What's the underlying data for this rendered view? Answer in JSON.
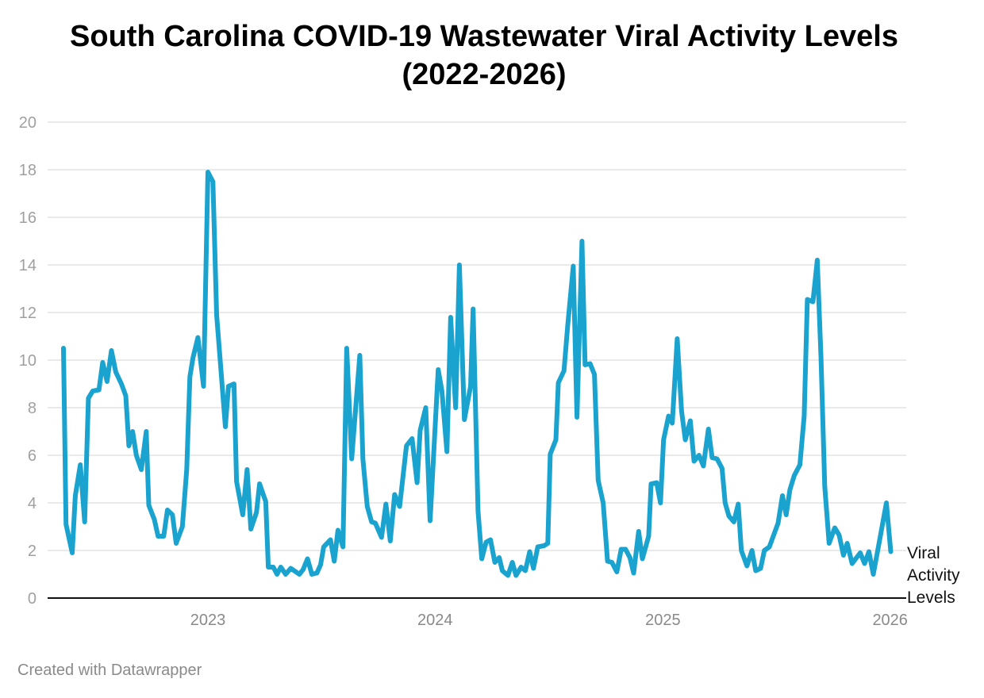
{
  "chart_data": {
    "type": "line",
    "title": "South Carolina COVID-19  Wastewater Viral Activity Levels",
    "subtitle": "(2022-2026)",
    "xlabel": "",
    "ylabel": "",
    "ylim": [
      0,
      20
    ],
    "y_ticks": [
      "0",
      "2",
      "4",
      "6",
      "8",
      "10",
      "12",
      "14",
      "16",
      "18",
      "20"
    ],
    "x_ticks": [
      {
        "date": "2023-01-01",
        "label": "2023"
      },
      {
        "date": "2024-01-01",
        "label": "2024"
      },
      {
        "date": "2025-01-01",
        "label": "2025"
      },
      {
        "date": "2026-01-01",
        "label": "2026"
      }
    ],
    "grid": true,
    "legend": "none",
    "series": [
      {
        "name": "Viral Activity Levels",
        "color": "#1aa3cf",
        "points": [
          [
            "2022-05-14",
            10.5
          ],
          [
            "2022-05-18",
            3.1
          ],
          [
            "2022-05-28",
            1.9
          ],
          [
            "2022-06-02",
            4.3
          ],
          [
            "2022-06-10",
            5.6
          ],
          [
            "2022-06-17",
            3.2
          ],
          [
            "2022-06-23",
            8.4
          ],
          [
            "2022-06-30",
            8.7
          ],
          [
            "2022-07-10",
            8.75
          ],
          [
            "2022-07-16",
            9.9
          ],
          [
            "2022-07-23",
            9.1
          ],
          [
            "2022-07-30",
            10.4
          ],
          [
            "2022-08-06",
            9.5
          ],
          [
            "2022-08-15",
            9.0
          ],
          [
            "2022-08-22",
            8.5
          ],
          [
            "2022-08-27",
            6.4
          ],
          [
            "2022-09-02",
            7.0
          ],
          [
            "2022-09-08",
            6.0
          ],
          [
            "2022-09-16",
            5.4
          ],
          [
            "2022-09-24",
            7.0
          ],
          [
            "2022-09-28",
            3.9
          ],
          [
            "2022-10-07",
            3.3
          ],
          [
            "2022-10-13",
            2.6
          ],
          [
            "2022-10-22",
            2.6
          ],
          [
            "2022-10-28",
            3.7
          ],
          [
            "2022-11-05",
            3.5
          ],
          [
            "2022-11-11",
            2.3
          ],
          [
            "2022-11-21",
            3.0
          ],
          [
            "2022-11-28",
            5.4
          ],
          [
            "2022-12-03",
            9.3
          ],
          [
            "2022-12-08",
            10.1
          ],
          [
            "2022-12-16",
            10.95
          ],
          [
            "2022-12-25",
            8.9
          ],
          [
            "2023-01-01",
            17.9
          ],
          [
            "2023-01-09",
            17.5
          ],
          [
            "2023-01-15",
            11.9
          ],
          [
            "2023-01-29",
            7.2
          ],
          [
            "2023-02-03",
            8.9
          ],
          [
            "2023-02-12",
            9.0
          ],
          [
            "2023-02-16",
            4.9
          ],
          [
            "2023-02-26",
            3.5
          ],
          [
            "2023-03-05",
            5.4
          ],
          [
            "2023-03-11",
            2.9
          ],
          [
            "2023-03-20",
            3.6
          ],
          [
            "2023-03-25",
            4.8
          ],
          [
            "2023-04-04",
            4.05
          ],
          [
            "2023-04-08",
            1.3
          ],
          [
            "2023-04-16",
            1.3
          ],
          [
            "2023-04-22",
            1.0
          ],
          [
            "2023-04-28",
            1.3
          ],
          [
            "2023-05-06",
            1.0
          ],
          [
            "2023-05-14",
            1.25
          ],
          [
            "2023-05-28",
            1.0
          ],
          [
            "2023-06-03",
            1.2
          ],
          [
            "2023-06-10",
            1.65
          ],
          [
            "2023-06-17",
            1.0
          ],
          [
            "2023-06-25",
            1.05
          ],
          [
            "2023-07-01",
            1.4
          ],
          [
            "2023-07-06",
            2.15
          ],
          [
            "2023-07-17",
            2.45
          ],
          [
            "2023-07-23",
            1.55
          ],
          [
            "2023-07-29",
            2.85
          ],
          [
            "2023-08-06",
            2.15
          ],
          [
            "2023-08-12",
            10.5
          ],
          [
            "2023-08-20",
            5.85
          ],
          [
            "2023-09-02",
            10.2
          ],
          [
            "2023-09-07",
            5.85
          ],
          [
            "2023-09-14",
            3.85
          ],
          [
            "2023-09-21",
            3.2
          ],
          [
            "2023-09-27",
            3.15
          ],
          [
            "2023-10-07",
            2.55
          ],
          [
            "2023-10-14",
            3.95
          ],
          [
            "2023-10-21",
            2.4
          ],
          [
            "2023-10-28",
            4.35
          ],
          [
            "2023-11-05",
            3.85
          ],
          [
            "2023-11-16",
            6.4
          ],
          [
            "2023-11-25",
            6.7
          ],
          [
            "2023-12-03",
            4.85
          ],
          [
            "2023-12-08",
            7.05
          ],
          [
            "2023-12-17",
            8.0
          ],
          [
            "2023-12-24",
            3.25
          ],
          [
            "2024-01-06",
            9.6
          ],
          [
            "2024-01-12",
            8.7
          ],
          [
            "2024-01-20",
            6.15
          ],
          [
            "2024-01-26",
            11.8
          ],
          [
            "2024-02-03",
            8.0
          ],
          [
            "2024-02-09",
            14.0
          ],
          [
            "2024-02-17",
            7.5
          ],
          [
            "2024-02-27",
            8.9
          ],
          [
            "2024-03-02",
            12.15
          ],
          [
            "2024-03-10",
            3.65
          ],
          [
            "2024-03-16",
            1.65
          ],
          [
            "2024-03-23",
            2.35
          ],
          [
            "2024-03-30",
            2.45
          ],
          [
            "2024-04-06",
            1.5
          ],
          [
            "2024-04-13",
            1.7
          ],
          [
            "2024-04-18",
            1.15
          ],
          [
            "2024-04-27",
            0.95
          ],
          [
            "2024-05-04",
            1.5
          ],
          [
            "2024-05-10",
            0.95
          ],
          [
            "2024-05-18",
            1.3
          ],
          [
            "2024-05-25",
            1.15
          ],
          [
            "2024-06-01",
            1.95
          ],
          [
            "2024-06-07",
            1.25
          ],
          [
            "2024-06-14",
            2.15
          ],
          [
            "2024-06-24",
            2.2
          ],
          [
            "2024-06-30",
            2.3
          ],
          [
            "2024-07-04",
            6.05
          ],
          [
            "2024-07-13",
            6.65
          ],
          [
            "2024-07-17",
            9.05
          ],
          [
            "2024-07-26",
            9.55
          ],
          [
            "2024-08-01",
            11.45
          ],
          [
            "2024-08-10",
            13.95
          ],
          [
            "2024-08-16",
            7.6
          ],
          [
            "2024-08-24",
            15.0
          ],
          [
            "2024-08-29",
            9.8
          ],
          [
            "2024-09-06",
            9.85
          ],
          [
            "2024-09-13",
            9.4
          ],
          [
            "2024-09-19",
            4.95
          ],
          [
            "2024-09-27",
            4.0
          ],
          [
            "2024-10-04",
            1.55
          ],
          [
            "2024-10-11",
            1.5
          ],
          [
            "2024-10-19",
            1.1
          ],
          [
            "2024-10-26",
            2.05
          ],
          [
            "2024-11-02",
            2.05
          ],
          [
            "2024-11-09",
            1.7
          ],
          [
            "2024-11-15",
            1.05
          ],
          [
            "2024-11-23",
            2.8
          ],
          [
            "2024-11-29",
            1.65
          ],
          [
            "2024-12-09",
            2.6
          ],
          [
            "2024-12-13",
            4.8
          ],
          [
            "2024-12-22",
            4.85
          ],
          [
            "2024-12-28",
            4.0
          ],
          [
            "2025-01-02",
            6.65
          ],
          [
            "2025-01-10",
            7.65
          ],
          [
            "2025-01-16",
            7.35
          ],
          [
            "2025-01-24",
            10.9
          ],
          [
            "2025-01-31",
            7.85
          ],
          [
            "2025-02-06",
            6.65
          ],
          [
            "2025-02-14",
            7.45
          ],
          [
            "2025-02-20",
            5.75
          ],
          [
            "2025-02-28",
            6.0
          ],
          [
            "2025-03-07",
            5.55
          ],
          [
            "2025-03-15",
            7.1
          ],
          [
            "2025-03-21",
            5.9
          ],
          [
            "2025-03-29",
            5.85
          ],
          [
            "2025-04-06",
            5.45
          ],
          [
            "2025-04-11",
            4.0
          ],
          [
            "2025-04-17",
            3.45
          ],
          [
            "2025-04-25",
            3.2
          ],
          [
            "2025-05-02",
            3.95
          ],
          [
            "2025-05-07",
            2.0
          ],
          [
            "2025-05-16",
            1.35
          ],
          [
            "2025-05-24",
            2.0
          ],
          [
            "2025-05-30",
            1.15
          ],
          [
            "2025-06-07",
            1.25
          ],
          [
            "2025-06-13",
            2.0
          ],
          [
            "2025-06-21",
            2.15
          ],
          [
            "2025-06-28",
            2.65
          ],
          [
            "2025-07-05",
            3.15
          ],
          [
            "2025-07-12",
            4.3
          ],
          [
            "2025-07-18",
            3.5
          ],
          [
            "2025-07-24",
            4.55
          ],
          [
            "2025-07-31",
            5.15
          ],
          [
            "2025-08-09",
            5.6
          ],
          [
            "2025-08-16",
            7.65
          ],
          [
            "2025-08-21",
            12.55
          ],
          [
            "2025-08-30",
            12.45
          ],
          [
            "2025-09-06",
            14.2
          ],
          [
            "2025-09-12",
            10.1
          ],
          [
            "2025-09-18",
            4.7
          ],
          [
            "2025-09-25",
            2.3
          ],
          [
            "2025-10-04",
            2.95
          ],
          [
            "2025-10-11",
            2.65
          ],
          [
            "2025-10-18",
            1.8
          ],
          [
            "2025-10-24",
            2.3
          ],
          [
            "2025-11-01",
            1.45
          ],
          [
            "2025-11-14",
            1.9
          ],
          [
            "2025-11-21",
            1.45
          ],
          [
            "2025-11-28",
            1.95
          ],
          [
            "2025-12-05",
            1.0
          ],
          [
            "2025-12-16",
            2.55
          ],
          [
            "2025-12-26",
            4.0
          ],
          [
            "2026-01-02",
            1.95
          ]
        ]
      }
    ]
  },
  "series_label_lines": [
    "Viral",
    "Activity",
    "Levels"
  ],
  "footer": "Created with Datawrapper"
}
